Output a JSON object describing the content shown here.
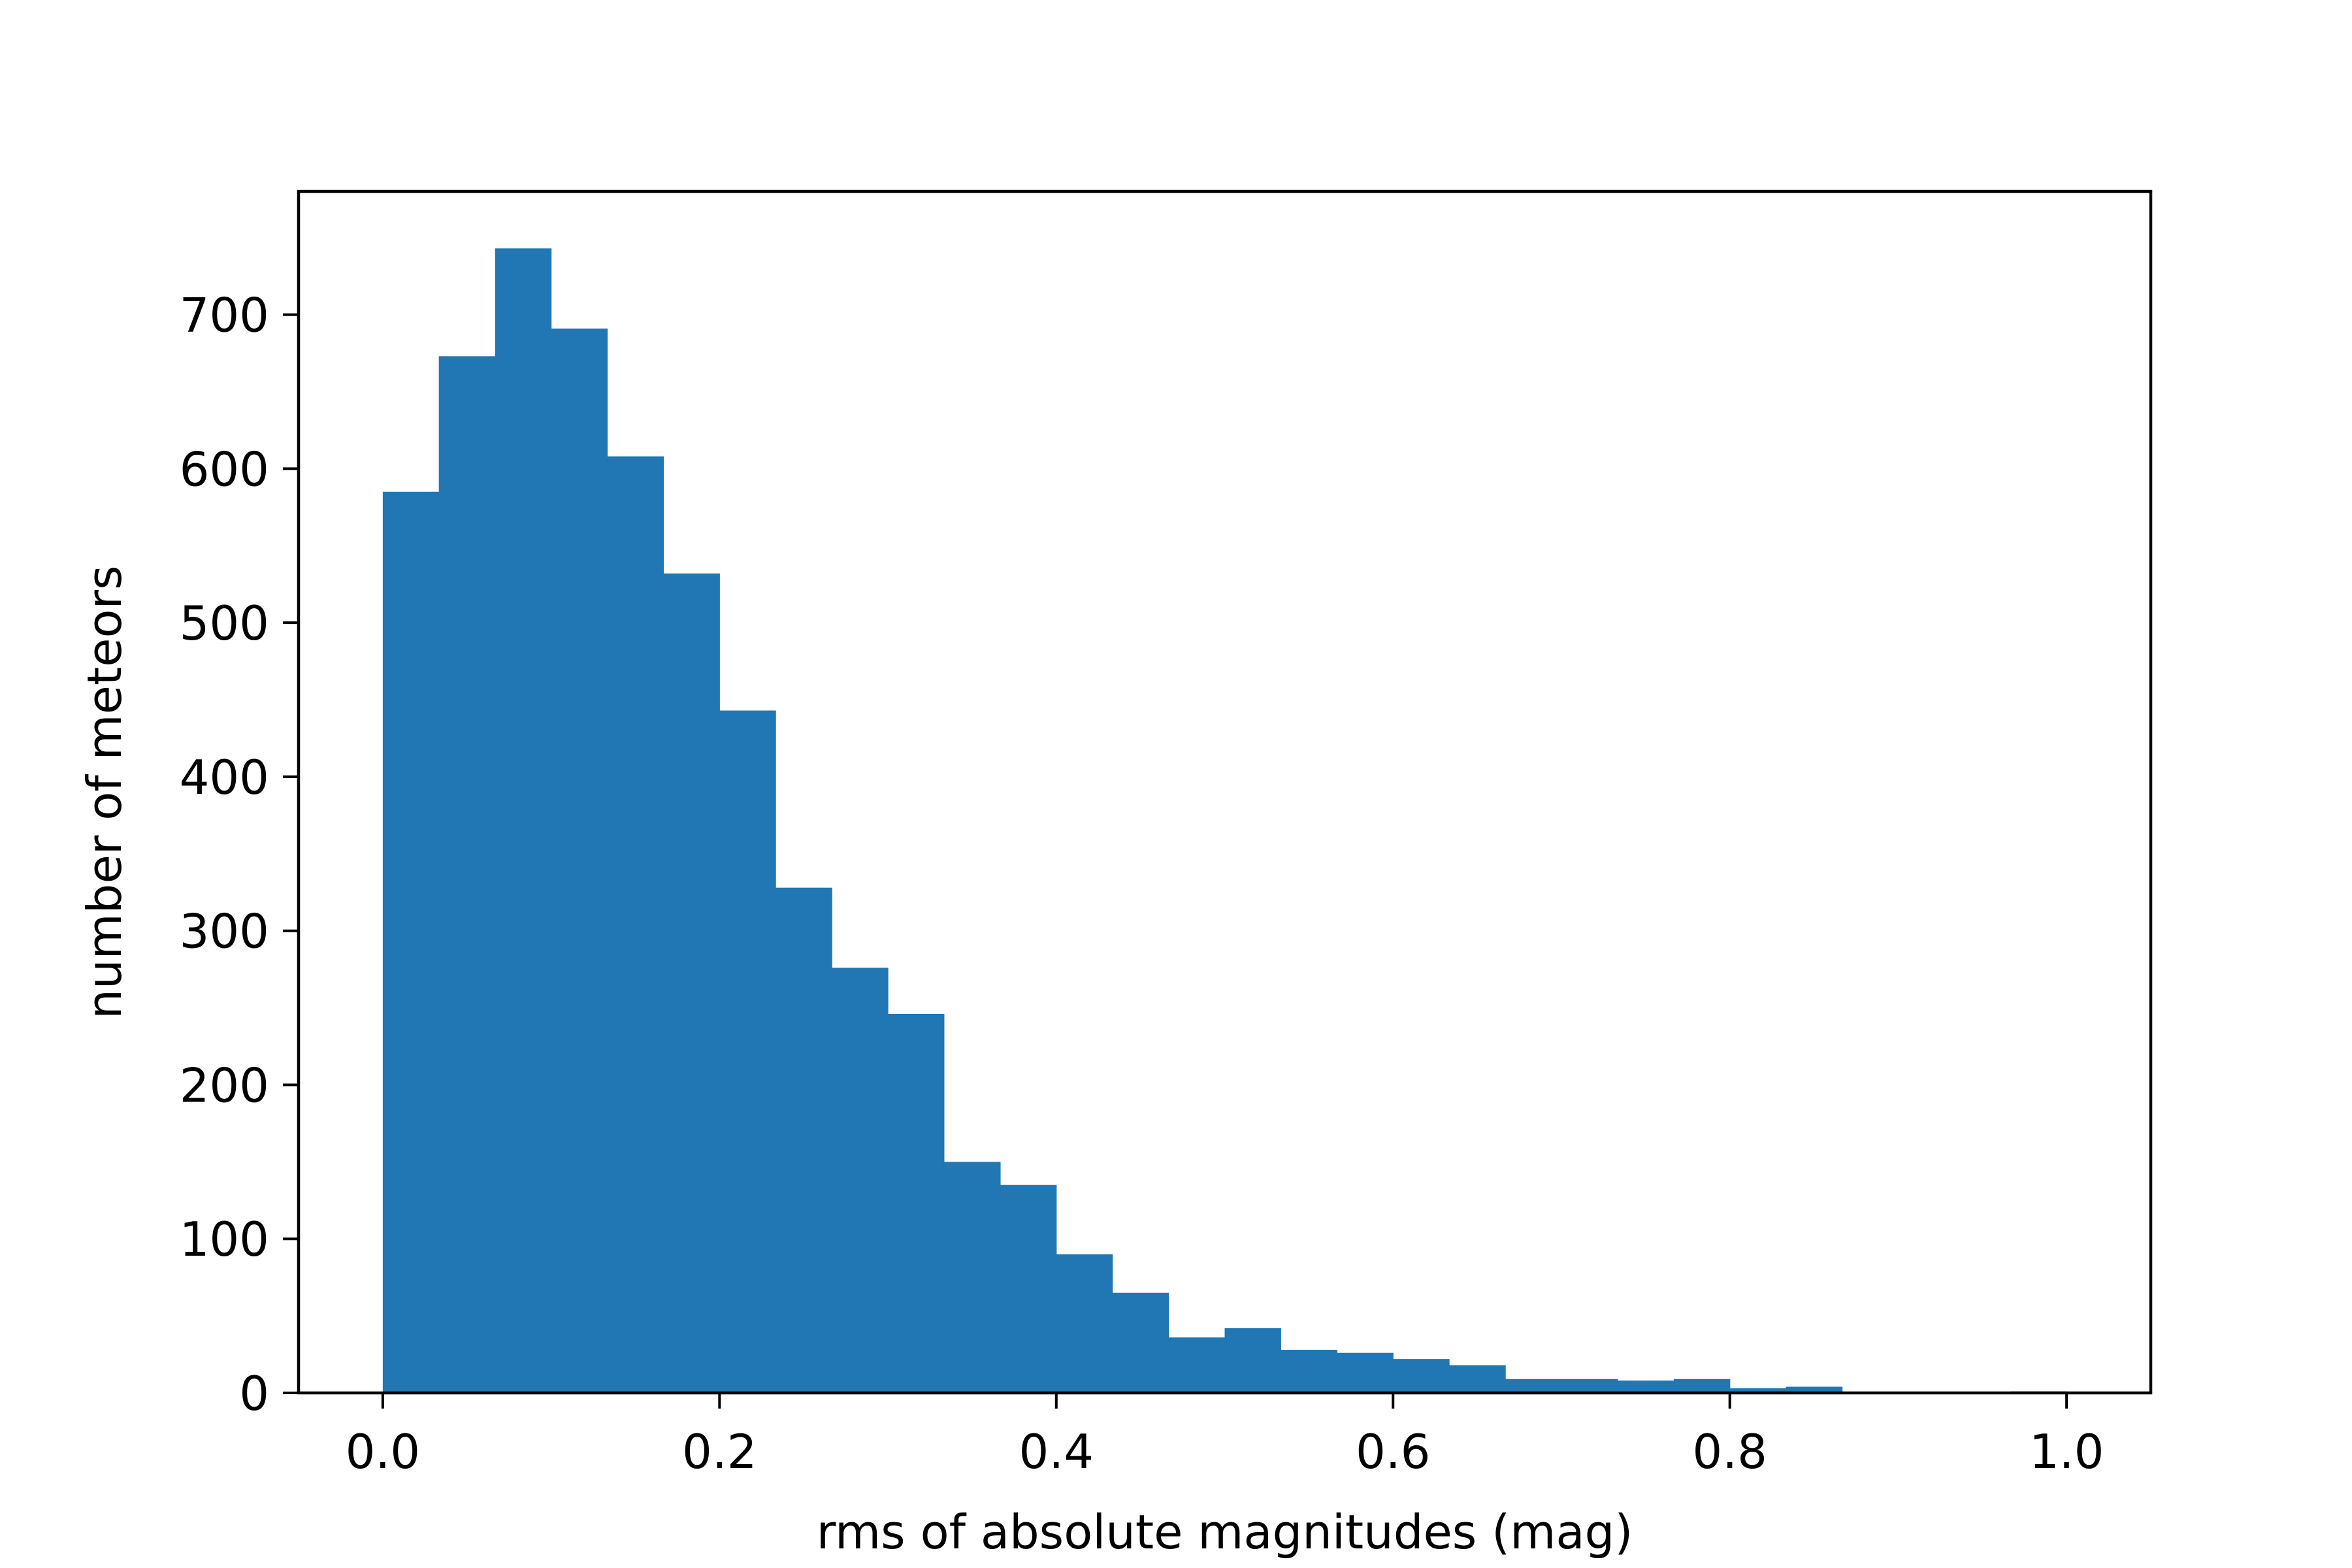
{
  "chart_data": {
    "type": "bar",
    "title": "",
    "xlabel": "rms of absolute magnitudes (mag)",
    "ylabel": "number of meteors",
    "xlim": [
      -0.05,
      1.05
    ],
    "ylim": [
      0,
      780
    ],
    "xticks": [
      0.0,
      0.2,
      0.4,
      0.6,
      0.8,
      1.0
    ],
    "xtick_labels": [
      "0.0",
      "0.2",
      "0.4",
      "0.6",
      "0.8",
      "1.0"
    ],
    "yticks": [
      0,
      100,
      200,
      300,
      400,
      500,
      600,
      700
    ],
    "ytick_labels": [
      "0",
      "100",
      "200",
      "300",
      "400",
      "500",
      "600",
      "700"
    ],
    "grid": false,
    "color": "#2077b4",
    "bin_edges": [
      0.0,
      0.0333,
      0.0667,
      0.1,
      0.1333,
      0.1667,
      0.2,
      0.2333,
      0.2667,
      0.3,
      0.3333,
      0.3667,
      0.4,
      0.4333,
      0.4667,
      0.5,
      0.5333,
      0.5667,
      0.6,
      0.6333,
      0.6667,
      0.7,
      0.7333,
      0.7667,
      0.8,
      0.8333,
      0.8667,
      0.9,
      0.9333,
      0.9667,
      1.0
    ],
    "values": [
      585,
      673,
      743,
      691,
      608,
      532,
      443,
      328,
      276,
      246,
      150,
      135,
      90,
      65,
      36,
      42,
      28,
      26,
      22,
      18,
      9,
      9,
      8,
      9,
      3,
      4,
      0,
      0,
      0,
      1
    ]
  }
}
